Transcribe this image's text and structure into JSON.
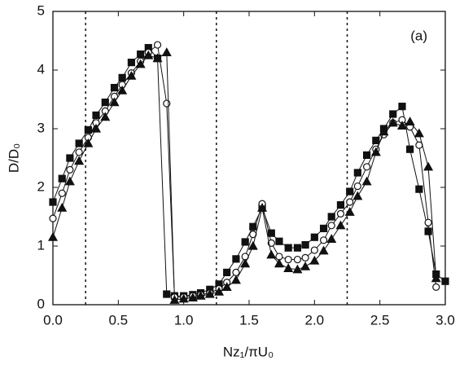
{
  "chart_data": {
    "type": "line",
    "xlabel": "Nz₁/πU₀",
    "ylabel": "D/D₀",
    "annotation": "(a)",
    "xlim": [
      0,
      3.0
    ],
    "ylim": [
      0,
      5
    ],
    "xticks": [
      {
        "value": 0,
        "label": "0.0"
      },
      {
        "value": 0.5,
        "label": "0.5"
      },
      {
        "value": 1,
        "label": "1.0"
      },
      {
        "value": 1.5,
        "label": "1.5"
      },
      {
        "value": 2,
        "label": "2.0"
      },
      {
        "value": 2.5,
        "label": "2.5"
      },
      {
        "value": 3,
        "label": "3.0"
      }
    ],
    "yticks": [
      0,
      1,
      2,
      3,
      4,
      5
    ],
    "vlines": [
      0.25,
      1.25,
      2.25
    ],
    "x": [
      0,
      0.07,
      0.13,
      0.2,
      0.27,
      0.33,
      0.4,
      0.47,
      0.53,
      0.6,
      0.67,
      0.73,
      0.8,
      0.87,
      0.93,
      1.0,
      1.07,
      1.13,
      1.2,
      1.27,
      1.33,
      1.4,
      1.47,
      1.53,
      1.6,
      1.67,
      1.73,
      1.8,
      1.87,
      1.93,
      2.0,
      2.07,
      2.13,
      2.2,
      2.27,
      2.33,
      2.4,
      2.47,
      2.53,
      2.6,
      2.67,
      2.73,
      2.8,
      2.87,
      2.93,
      3.0
    ],
    "series": [
      {
        "marker": "square",
        "color": "#111111",
        "values": [
          1.75,
          2.15,
          2.5,
          2.75,
          2.98,
          3.23,
          3.45,
          3.7,
          3.87,
          4.13,
          4.27,
          4.38,
          4.2,
          0.18,
          0.15,
          0.15,
          0.17,
          0.2,
          0.26,
          0.35,
          0.55,
          0.78,
          1.07,
          1.33,
          1.65,
          1.22,
          1.08,
          0.97,
          0.97,
          1.02,
          1.15,
          1.3,
          1.5,
          1.7,
          1.93,
          2.25,
          2.55,
          2.8,
          3.0,
          3.25,
          3.38,
          2.65,
          1.97,
          1.25,
          0.52,
          0.4
        ]
      },
      {
        "marker": "circle",
        "color": "#111111",
        "values": [
          1.47,
          1.9,
          2.3,
          2.6,
          2.85,
          3.1,
          3.3,
          3.55,
          3.75,
          3.95,
          4.15,
          4.3,
          4.43,
          3.43,
          0.13,
          0.13,
          0.15,
          0.17,
          0.2,
          0.27,
          0.38,
          0.55,
          0.82,
          1.2,
          1.72,
          1.05,
          0.82,
          0.77,
          0.77,
          0.8,
          0.93,
          1.1,
          1.35,
          1.55,
          1.75,
          2.02,
          2.35,
          2.65,
          2.9,
          3.1,
          3.15,
          3.03,
          2.72,
          1.4,
          0.3,
          null
        ]
      },
      {
        "marker": "triangle",
        "color": "#111111",
        "values": [
          1.15,
          1.65,
          2.1,
          2.45,
          2.75,
          3.0,
          3.2,
          3.45,
          3.65,
          3.9,
          4.1,
          4.25,
          4.2,
          4.3,
          0.08,
          0.1,
          0.12,
          0.15,
          0.18,
          0.22,
          0.3,
          0.42,
          0.7,
          1.0,
          1.65,
          0.85,
          0.7,
          0.62,
          0.6,
          0.65,
          0.75,
          0.92,
          1.12,
          1.35,
          1.58,
          1.85,
          2.1,
          2.6,
          2.95,
          3.1,
          3.05,
          3.12,
          2.92,
          2.35,
          0.45,
          null
        ]
      }
    ]
  }
}
